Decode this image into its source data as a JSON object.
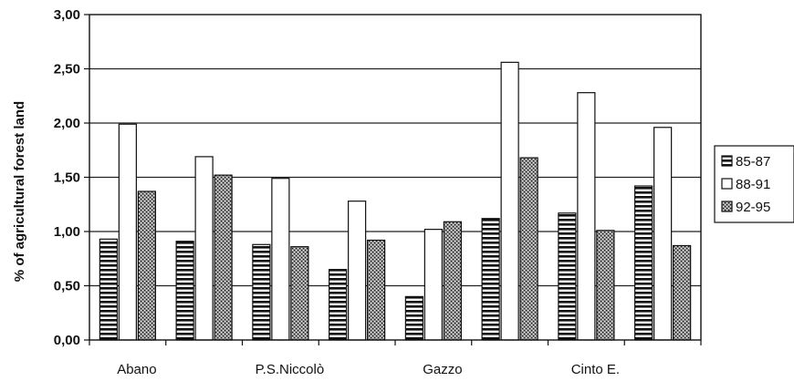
{
  "chart_data": {
    "type": "bar",
    "title": "",
    "xlabel": "",
    "ylabel": "% of agricultural forest land",
    "ylim": [
      0,
      3
    ],
    "yticks": [
      "0,00",
      "0,50",
      "1,00",
      "1,50",
      "2,00",
      "2,50",
      "3,00"
    ],
    "grid": true,
    "legend_position": "right",
    "category_labels_shown": [
      "Abano",
      "",
      "P.S.Niccolò",
      "",
      "Gazzo",
      "",
      "Cinto E.",
      ""
    ],
    "series": [
      {
        "name": "85-87",
        "pattern": "horizontal-stripes",
        "values": [
          0.93,
          0.91,
          0.88,
          0.65,
          0.4,
          1.12,
          1.17,
          1.42
        ]
      },
      {
        "name": "88-91",
        "pattern": "white",
        "values": [
          1.99,
          1.69,
          1.49,
          1.28,
          1.02,
          2.56,
          2.28,
          1.96
        ]
      },
      {
        "name": "92-95",
        "pattern": "dotted",
        "values": [
          1.37,
          1.52,
          0.86,
          0.92,
          1.09,
          1.68,
          1.01,
          0.87
        ]
      }
    ]
  }
}
